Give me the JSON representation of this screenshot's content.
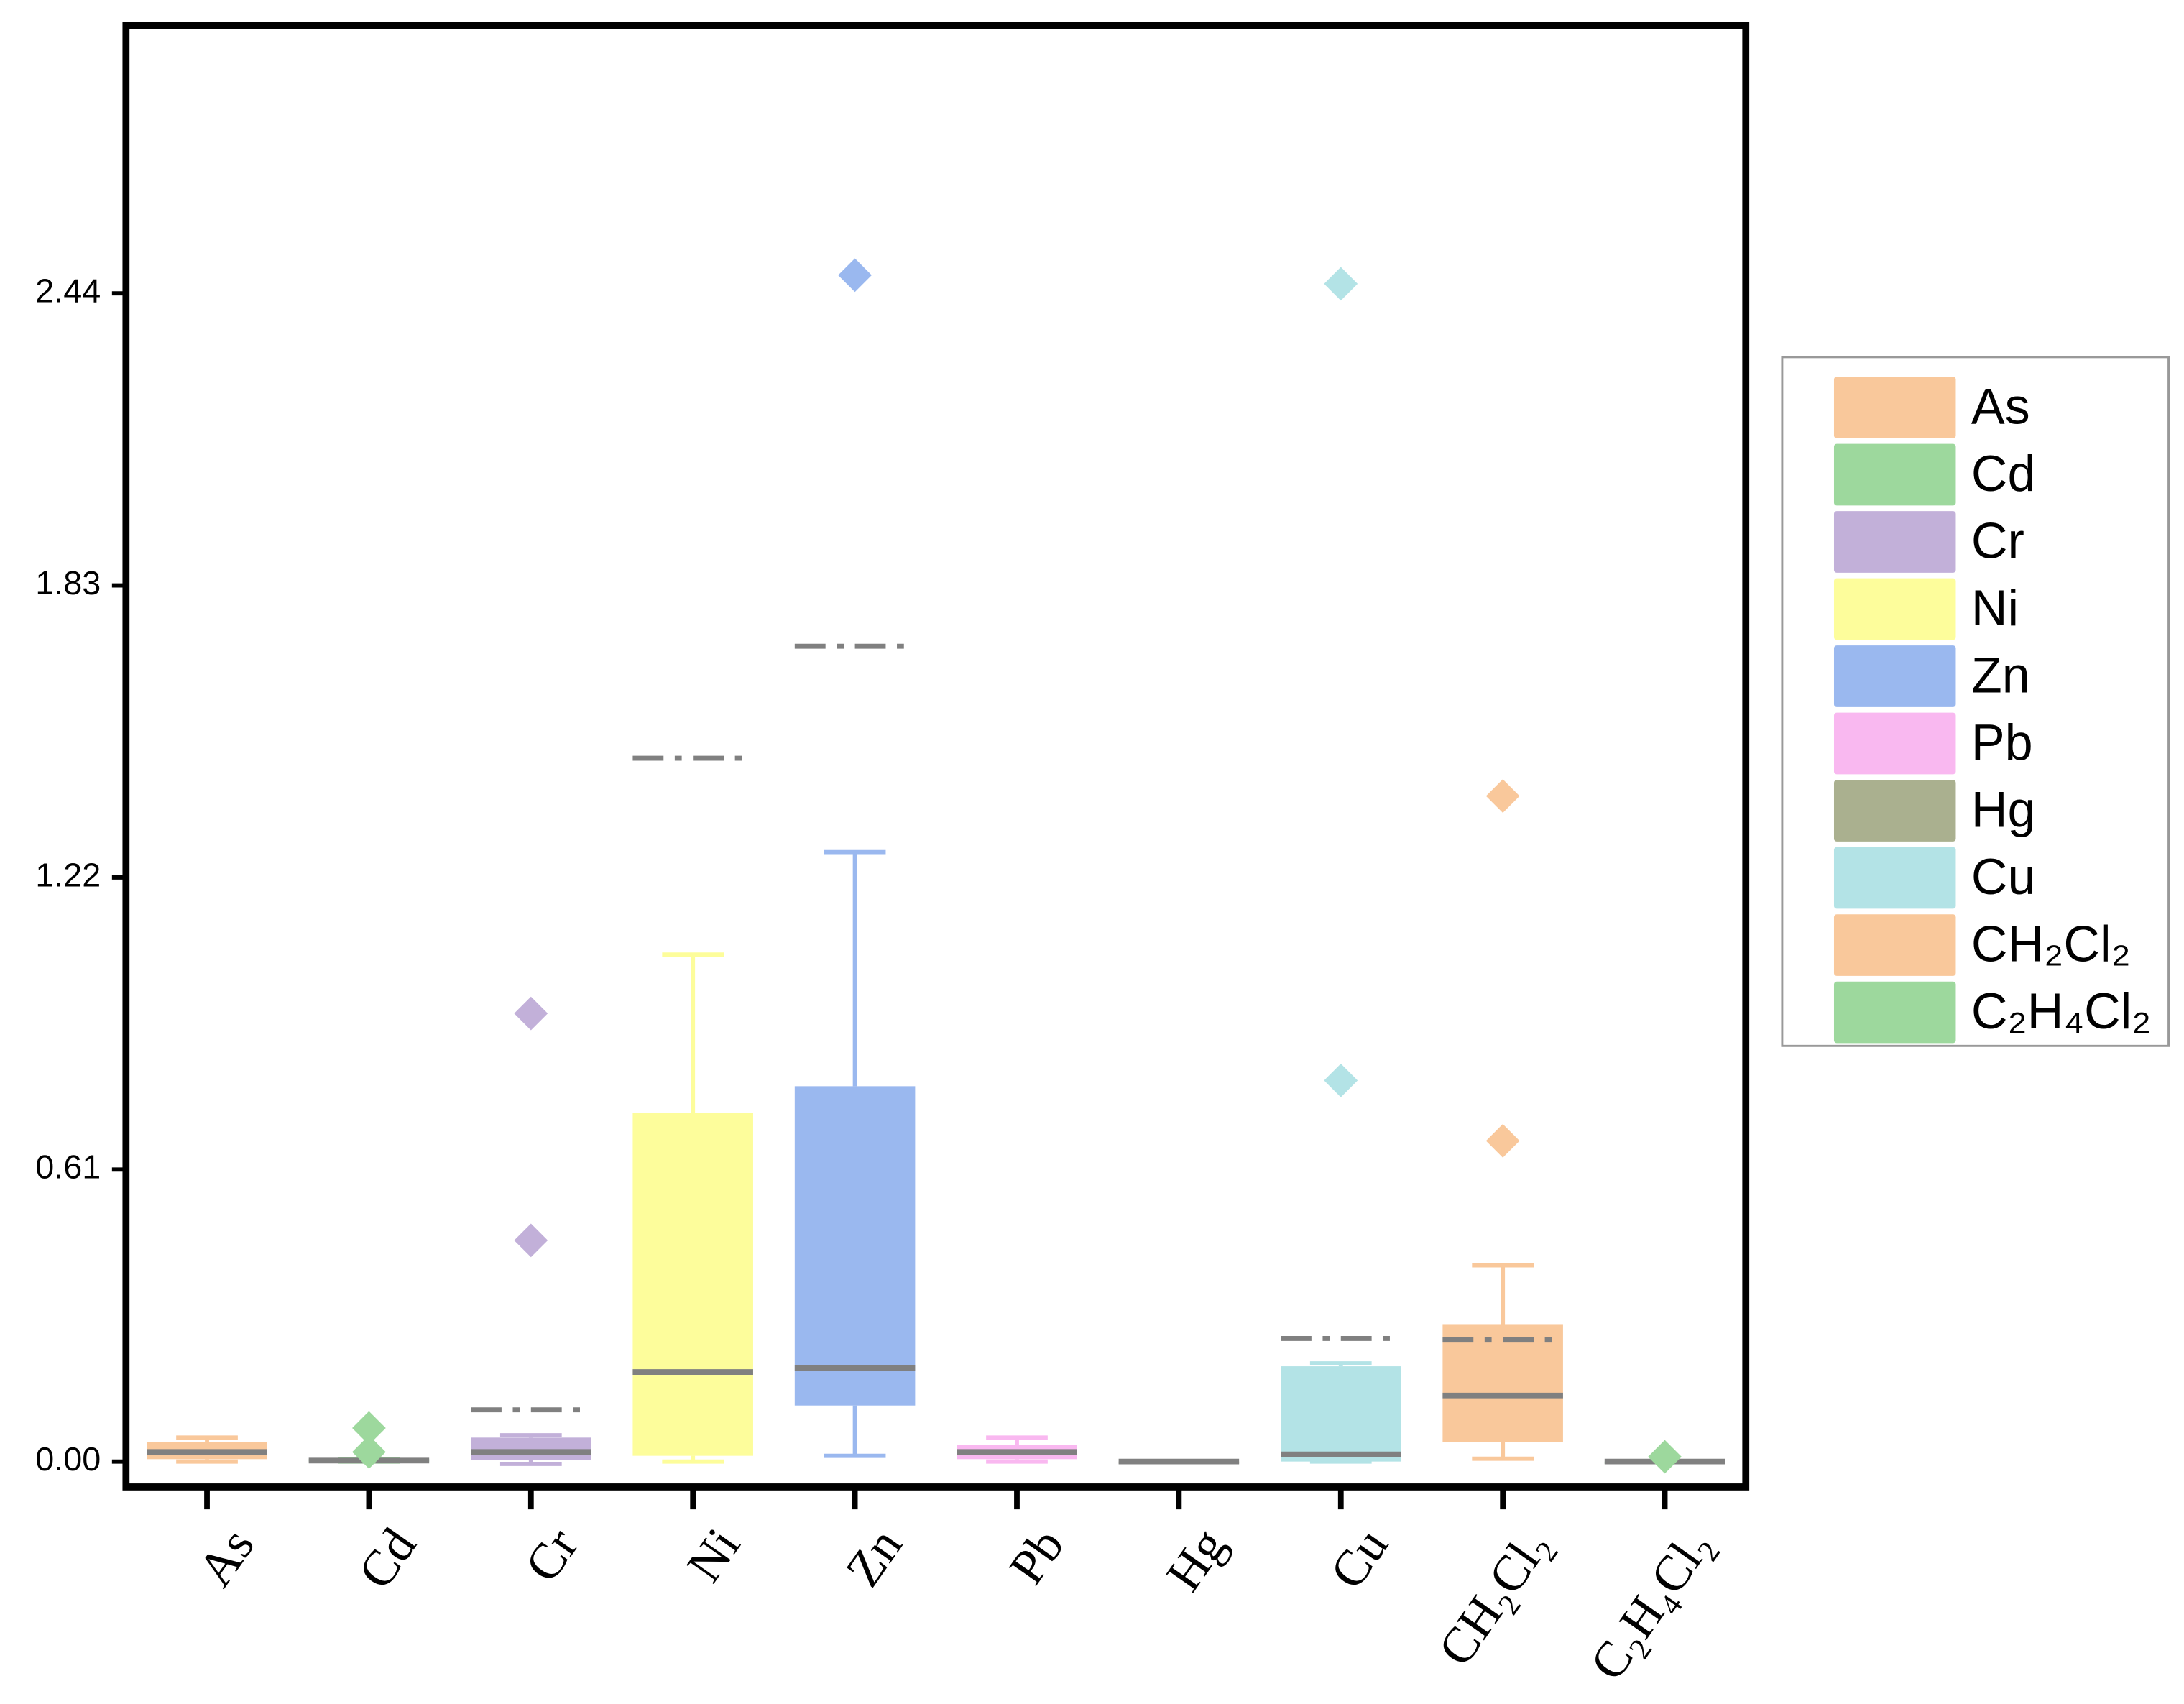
{
  "chart_data": {
    "type": "box",
    "categories": [
      "As",
      "Cd",
      "Cr",
      "Ni",
      "Zn",
      "Pb",
      "Hg",
      "Cu",
      "CH₂Cl₂",
      "C₂H₄Cl₂"
    ],
    "colors": [
      "#f9c89b",
      "#9dd89d",
      "#c2b0d9",
      "#fdfd9b",
      "#9ab8ef",
      "#f9b8f0",
      "#aab08f",
      "#b3e3e6",
      "#f9c89b",
      "#9dd89d"
    ],
    "boxes": [
      {
        "min": 0,
        "q1": 0.005,
        "median": 0.02,
        "q3": 0.04,
        "max": 0.05,
        "mean": null,
        "outliers": []
      },
      {
        "min": 0,
        "q1": 0,
        "median": 0.002,
        "q3": 0.005,
        "max": 0.005,
        "mean": null,
        "outliers": [
          0.07,
          0.02
        ]
      },
      {
        "min": -0.005,
        "q1": 0.003,
        "median": 0.02,
        "q3": 0.05,
        "max": 0.055,
        "mean": 0.108,
        "outliers": [
          0.936,
          0.462
        ]
      },
      {
        "min": 0,
        "q1": 0.012,
        "median": 0.187,
        "q3": 0.728,
        "max": 1.059,
        "mean": 1.469,
        "outliers": []
      },
      {
        "min": 0.012,
        "q1": 0.117,
        "median": 0.196,
        "q3": 0.784,
        "max": 1.273,
        "mean": 1.703,
        "outliers": [
          2.478
        ]
      },
      {
        "min": 0,
        "q1": 0.005,
        "median": 0.02,
        "q3": 0.035,
        "max": 0.05,
        "mean": null,
        "outliers": []
      },
      {
        "min": 0,
        "q1": 0,
        "median": 0,
        "q3": 0,
        "max": 0,
        "mean": null,
        "outliers": []
      },
      {
        "min": 0,
        "q1": 0,
        "median": 0.015,
        "q3": 0.199,
        "max": 0.205,
        "mean": 0.257,
        "outliers": [
          2.46,
          0.796
        ]
      },
      {
        "min": 0.006,
        "q1": 0.041,
        "median": 0.138,
        "q3": 0.287,
        "max": 0.41,
        "mean": 0.255,
        "outliers": [
          1.39,
          0.67
        ]
      },
      {
        "min": 0,
        "q1": 0,
        "median": 0,
        "q3": 0,
        "max": 0,
        "mean": null,
        "outliers": [
          0.01
        ]
      }
    ],
    "ylim": [
      -0.053,
      3.0
    ],
    "yticks": [
      {
        "value": 0,
        "label": "0.00"
      },
      0.61,
      1.22,
      1.83,
      2.44
    ],
    "legend": "right"
  }
}
